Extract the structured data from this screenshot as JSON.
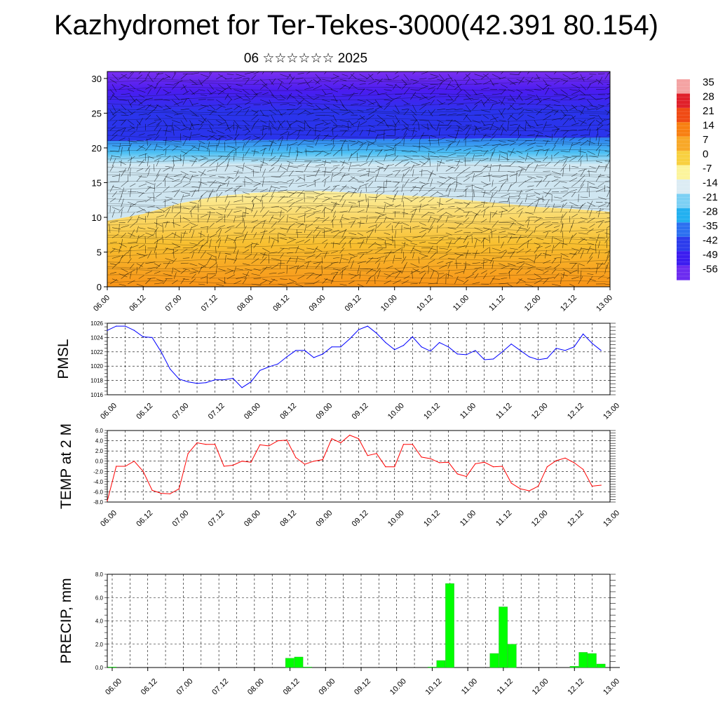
{
  "title": "Kazhydromet for Ter-Tekes-3000(42.391 80.154)",
  "subtitle": "06 ☆☆☆☆☆☆ 2025",
  "time_labels": [
    "06.00",
    "06.12",
    "07.00",
    "07.12",
    "08.00",
    "08.12",
    "09.00",
    "09.12",
    "10.00",
    "10.12",
    "11.00",
    "11.12",
    "12.00",
    "12.12",
    "13.00"
  ],
  "colorbar": {
    "labels": [
      "35",
      "28",
      "21",
      "14",
      "7",
      "0",
      "-7",
      "-14",
      "-21",
      "-28",
      "-35",
      "-42",
      "-49",
      "-56"
    ],
    "colors": [
      "#f4a3a3",
      "#e0202a",
      "#f04a14",
      "#f88012",
      "#f8a828",
      "#f8d040",
      "#fcf49c",
      "#dcecf4",
      "#7cd0f4",
      "#22b0f0",
      "#2c70f0",
      "#2c3cec",
      "#3c1cf0",
      "#6c2cf0"
    ]
  },
  "chart_data": [
    {
      "type": "heatmap",
      "name": "cross-section",
      "ylim": [
        0,
        31
      ],
      "y_ticks": [
        0,
        5,
        10,
        15,
        20,
        25,
        30
      ],
      "x_range": [
        0,
        168
      ],
      "boundaries": [
        {
          "level": "yellow-top",
          "x": [
            0,
            12,
            24,
            36,
            48,
            60,
            72,
            84,
            96,
            108,
            120,
            132,
            144,
            156,
            168
          ],
          "y": [
            9.5,
            10.5,
            12.0,
            13.0,
            13.5,
            13.8,
            13.8,
            13.5,
            13.2,
            13.0,
            12.5,
            12.0,
            11.5,
            11.2,
            10.8
          ]
        },
        {
          "level": "light-blue-top",
          "x": [
            0,
            168
          ],
          "y": [
            17.5,
            17.5
          ]
        },
        {
          "level": "blue-top",
          "x": [
            0,
            168
          ],
          "y": [
            21.0,
            21.5
          ]
        },
        {
          "level": "violet-top",
          "x": [
            0,
            168
          ],
          "y": [
            25.5,
            25.5
          ]
        }
      ]
    },
    {
      "type": "line",
      "ylabel": "PMSL",
      "ylim": [
        1016,
        1026
      ],
      "y_ticks": [
        "1026",
        "1024",
        "1022",
        "1020",
        "1018",
        "1016"
      ],
      "color": "#0000ff",
      "x": [
        0,
        3,
        6,
        9,
        12,
        15,
        18,
        21,
        24,
        27,
        30,
        33,
        36,
        39,
        42,
        45,
        48,
        51,
        54,
        57,
        60,
        63,
        66,
        69,
        72,
        75,
        78,
        81,
        84,
        87,
        90,
        93,
        96,
        99,
        102,
        105,
        108,
        111,
        114,
        117,
        120,
        123,
        126,
        129,
        132,
        135,
        138,
        141,
        144,
        147,
        150,
        153,
        156,
        159,
        162,
        165
      ],
      "values": [
        1025.0,
        1025.6,
        1025.6,
        1025.0,
        1024.1,
        1024.0,
        1022.0,
        1019.6,
        1018.2,
        1017.8,
        1017.6,
        1017.7,
        1018.1,
        1018.1,
        1018.3,
        1017.0,
        1017.8,
        1019.4,
        1019.9,
        1020.3,
        1021.3,
        1022.2,
        1022.2,
        1021.2,
        1021.7,
        1022.7,
        1022.7,
        1023.8,
        1025.1,
        1025.6,
        1024.6,
        1023.3,
        1022.3,
        1022.9,
        1024.1,
        1022.7,
        1022.1,
        1023.3,
        1022.7,
        1021.7,
        1021.6,
        1022.2,
        1020.9,
        1021.0,
        1022.0,
        1023.1,
        1022.2,
        1021.3,
        1020.9,
        1021.1,
        1022.5,
        1022.2,
        1022.7,
        1024.5,
        1023.2,
        1022.2
      ]
    },
    {
      "type": "line",
      "ylabel": "TEMP at 2 M",
      "ylim": [
        -8,
        6
      ],
      "y_ticks": [
        "6.0",
        "4.0",
        "2.0",
        "0.0",
        "-2.0",
        "-4.0",
        "-6.0",
        "-8.0"
      ],
      "color": "#ff0000",
      "x": [
        0,
        3,
        6,
        9,
        12,
        15,
        18,
        21,
        24,
        27,
        30,
        33,
        36,
        39,
        42,
        45,
        48,
        51,
        54,
        57,
        60,
        63,
        66,
        69,
        72,
        75,
        78,
        81,
        84,
        87,
        90,
        93,
        96,
        99,
        102,
        105,
        108,
        111,
        114,
        117,
        120,
        123,
        126,
        129,
        132,
        135,
        138,
        141,
        144,
        147,
        150,
        153,
        156,
        159,
        162,
        165
      ],
      "values": [
        -7.8,
        -1.0,
        -1.0,
        0.0,
        -2.0,
        -5.7,
        -6.3,
        -6.4,
        -5.4,
        1.5,
        3.6,
        3.3,
        3.3,
        -1.0,
        -0.8,
        0.0,
        -0.2,
        3.2,
        3.0,
        4.0,
        4.1,
        0.7,
        -0.6,
        0.0,
        0.3,
        4.4,
        3.6,
        5.1,
        4.4,
        1.1,
        1.5,
        -1.1,
        -1.1,
        3.3,
        3.3,
        0.8,
        0.5,
        -0.3,
        -0.2,
        -2.5,
        -3.0,
        -0.5,
        -0.2,
        -1.1,
        -1.0,
        -4.3,
        -5.4,
        -5.8,
        -4.9,
        -1.1,
        0.1,
        0.6,
        -0.3,
        -1.6,
        -4.9,
        -4.7
      ]
    },
    {
      "type": "bar",
      "ylabel": "PRECIP, mm",
      "ylim": [
        0,
        8
      ],
      "y_ticks": [
        "8.0",
        "6.0",
        "4.0",
        "2.0",
        "0.0"
      ],
      "color": "#00ff00",
      "x": [
        0,
        3,
        6,
        9,
        12,
        15,
        18,
        21,
        24,
        27,
        30,
        33,
        36,
        39,
        42,
        45,
        48,
        51,
        54,
        57,
        60,
        63,
        66,
        69,
        72,
        75,
        78,
        81,
        84,
        87,
        90,
        93,
        96,
        99,
        102,
        105,
        108,
        111,
        114,
        117,
        120,
        123,
        126,
        129,
        132,
        135,
        138,
        141,
        144,
        147,
        150,
        153,
        156,
        159,
        162,
        165
      ],
      "values": [
        0.05,
        0,
        0,
        0,
        0,
        0,
        0,
        0,
        0,
        0,
        0,
        0,
        0,
        0,
        0,
        0,
        0,
        0,
        0,
        0,
        0.8,
        0.9,
        0.05,
        0,
        0,
        0,
        0,
        0,
        0,
        0,
        0,
        0,
        0,
        0,
        0,
        0,
        0.05,
        0.6,
        7.2,
        0,
        0,
        0,
        0,
        1.2,
        5.2,
        2.0,
        0,
        0,
        0,
        0,
        0,
        0,
        0.1,
        1.3,
        1.2,
        0.3
      ]
    }
  ]
}
